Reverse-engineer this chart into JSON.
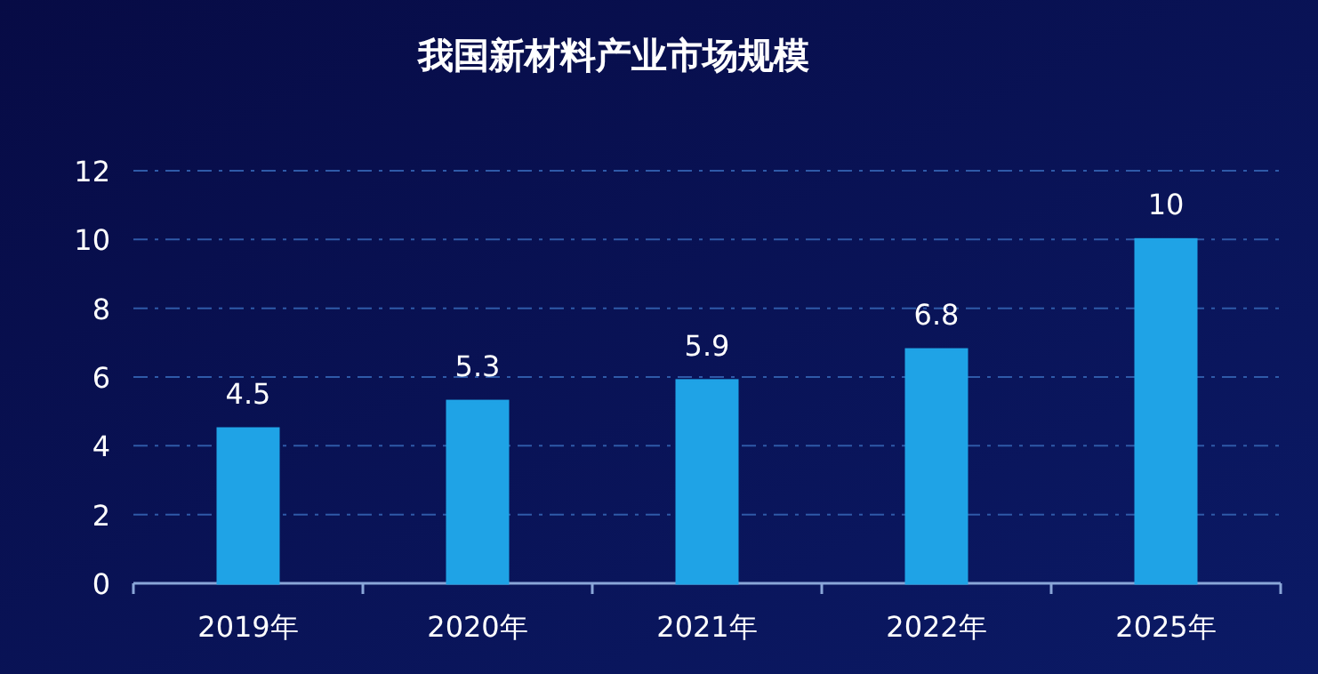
{
  "chart_data": {
    "type": "bar",
    "title": "我国新材料产业市场规模",
    "categories": [
      "2019年",
      "2020年",
      "2021年",
      "2022年",
      "2025年"
    ],
    "values": [
      4.5,
      5.3,
      5.9,
      6.8,
      10
    ],
    "color": "#1fa3e6",
    "ylim": [
      0,
      12
    ],
    "yticks": [
      0,
      2,
      4,
      6,
      8,
      10,
      12
    ],
    "grid": "y",
    "data_labels": true
  }
}
